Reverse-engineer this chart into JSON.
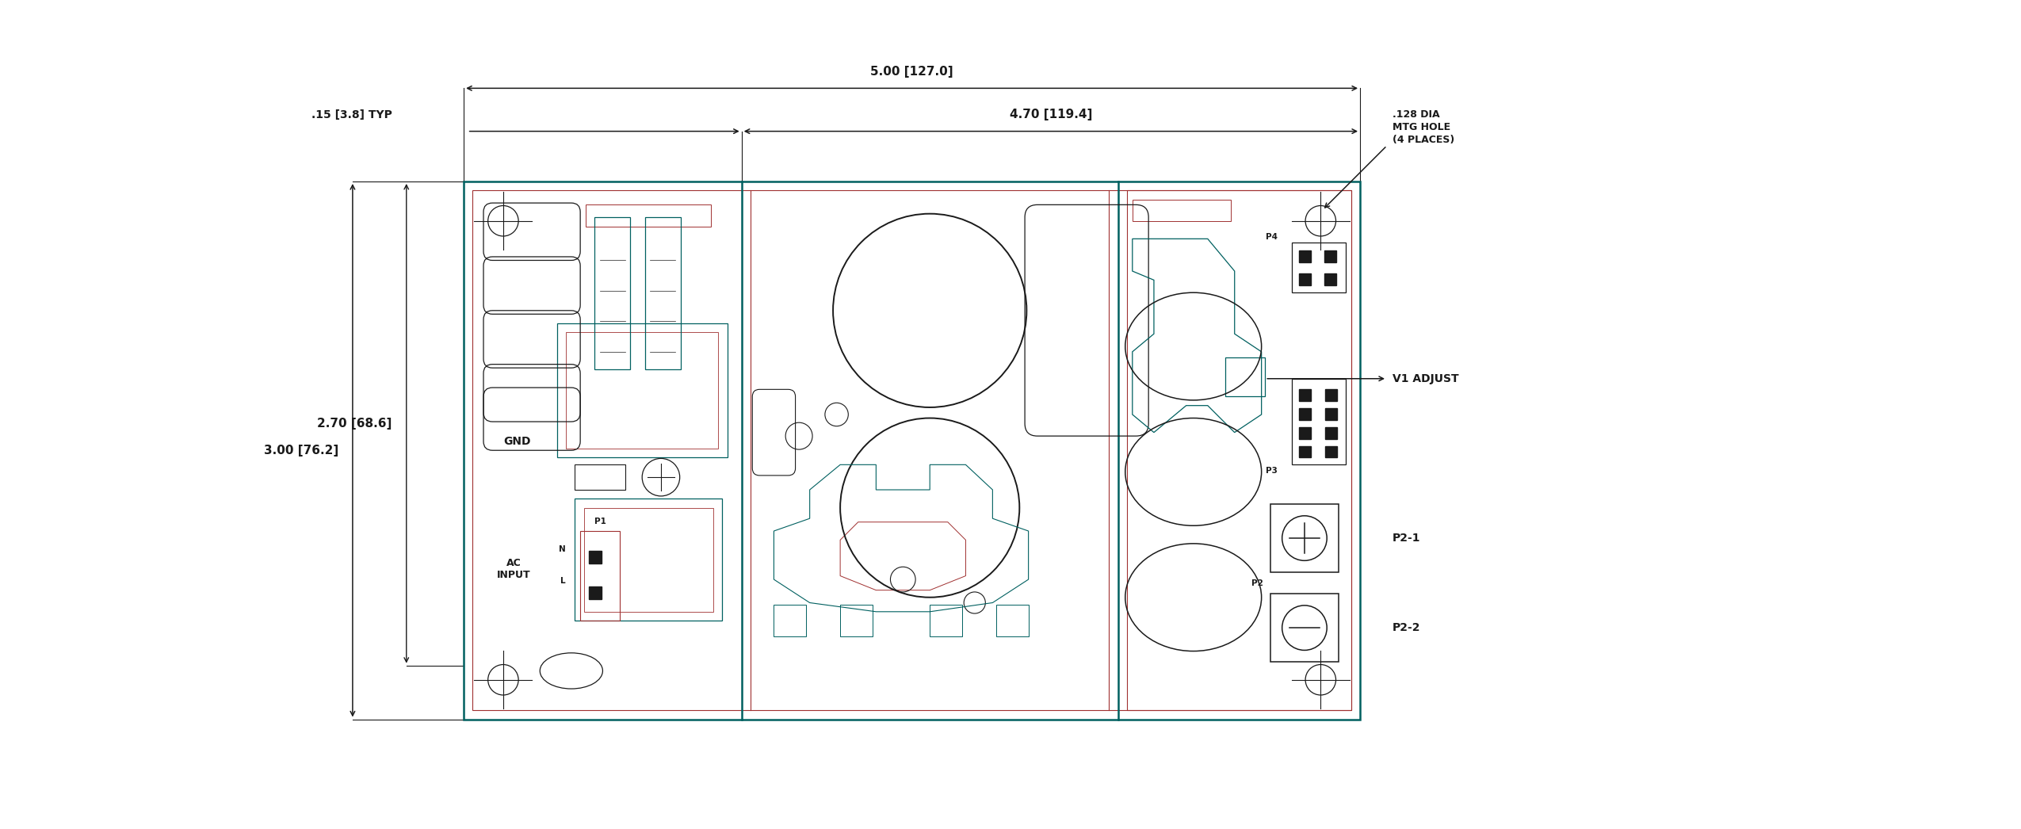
{
  "bg_color": "#ffffff",
  "tc": "#006060",
  "rc": "#a03030",
  "dc": "#1a1a1a",
  "fig_width": 25.5,
  "fig_height": 10.46,
  "dim_5_00": "5.00 [127.0]",
  "dim_4_70": "4.70 [119.4]",
  "dim_3_00": "3.00 [76.2]",
  "dim_2_70": "2.70 [68.6]",
  "dim_015": ".15 [3.8] TYP",
  "mtg_hole_text": ".128 DIA\nMTG HOLE\n(4 PLACES)",
  "v1_adjust": "V1 ADJUST",
  "gnd_text": "GND",
  "ac_input_text": "AC\nINPUT",
  "p1_text": "P1",
  "p2_text": "P2",
  "p2_1_text": "P2-1",
  "p2_2_text": "P2-2",
  "p3_text": "P3",
  "p4_text": "P4",
  "n_text": "N",
  "l_text": "L"
}
